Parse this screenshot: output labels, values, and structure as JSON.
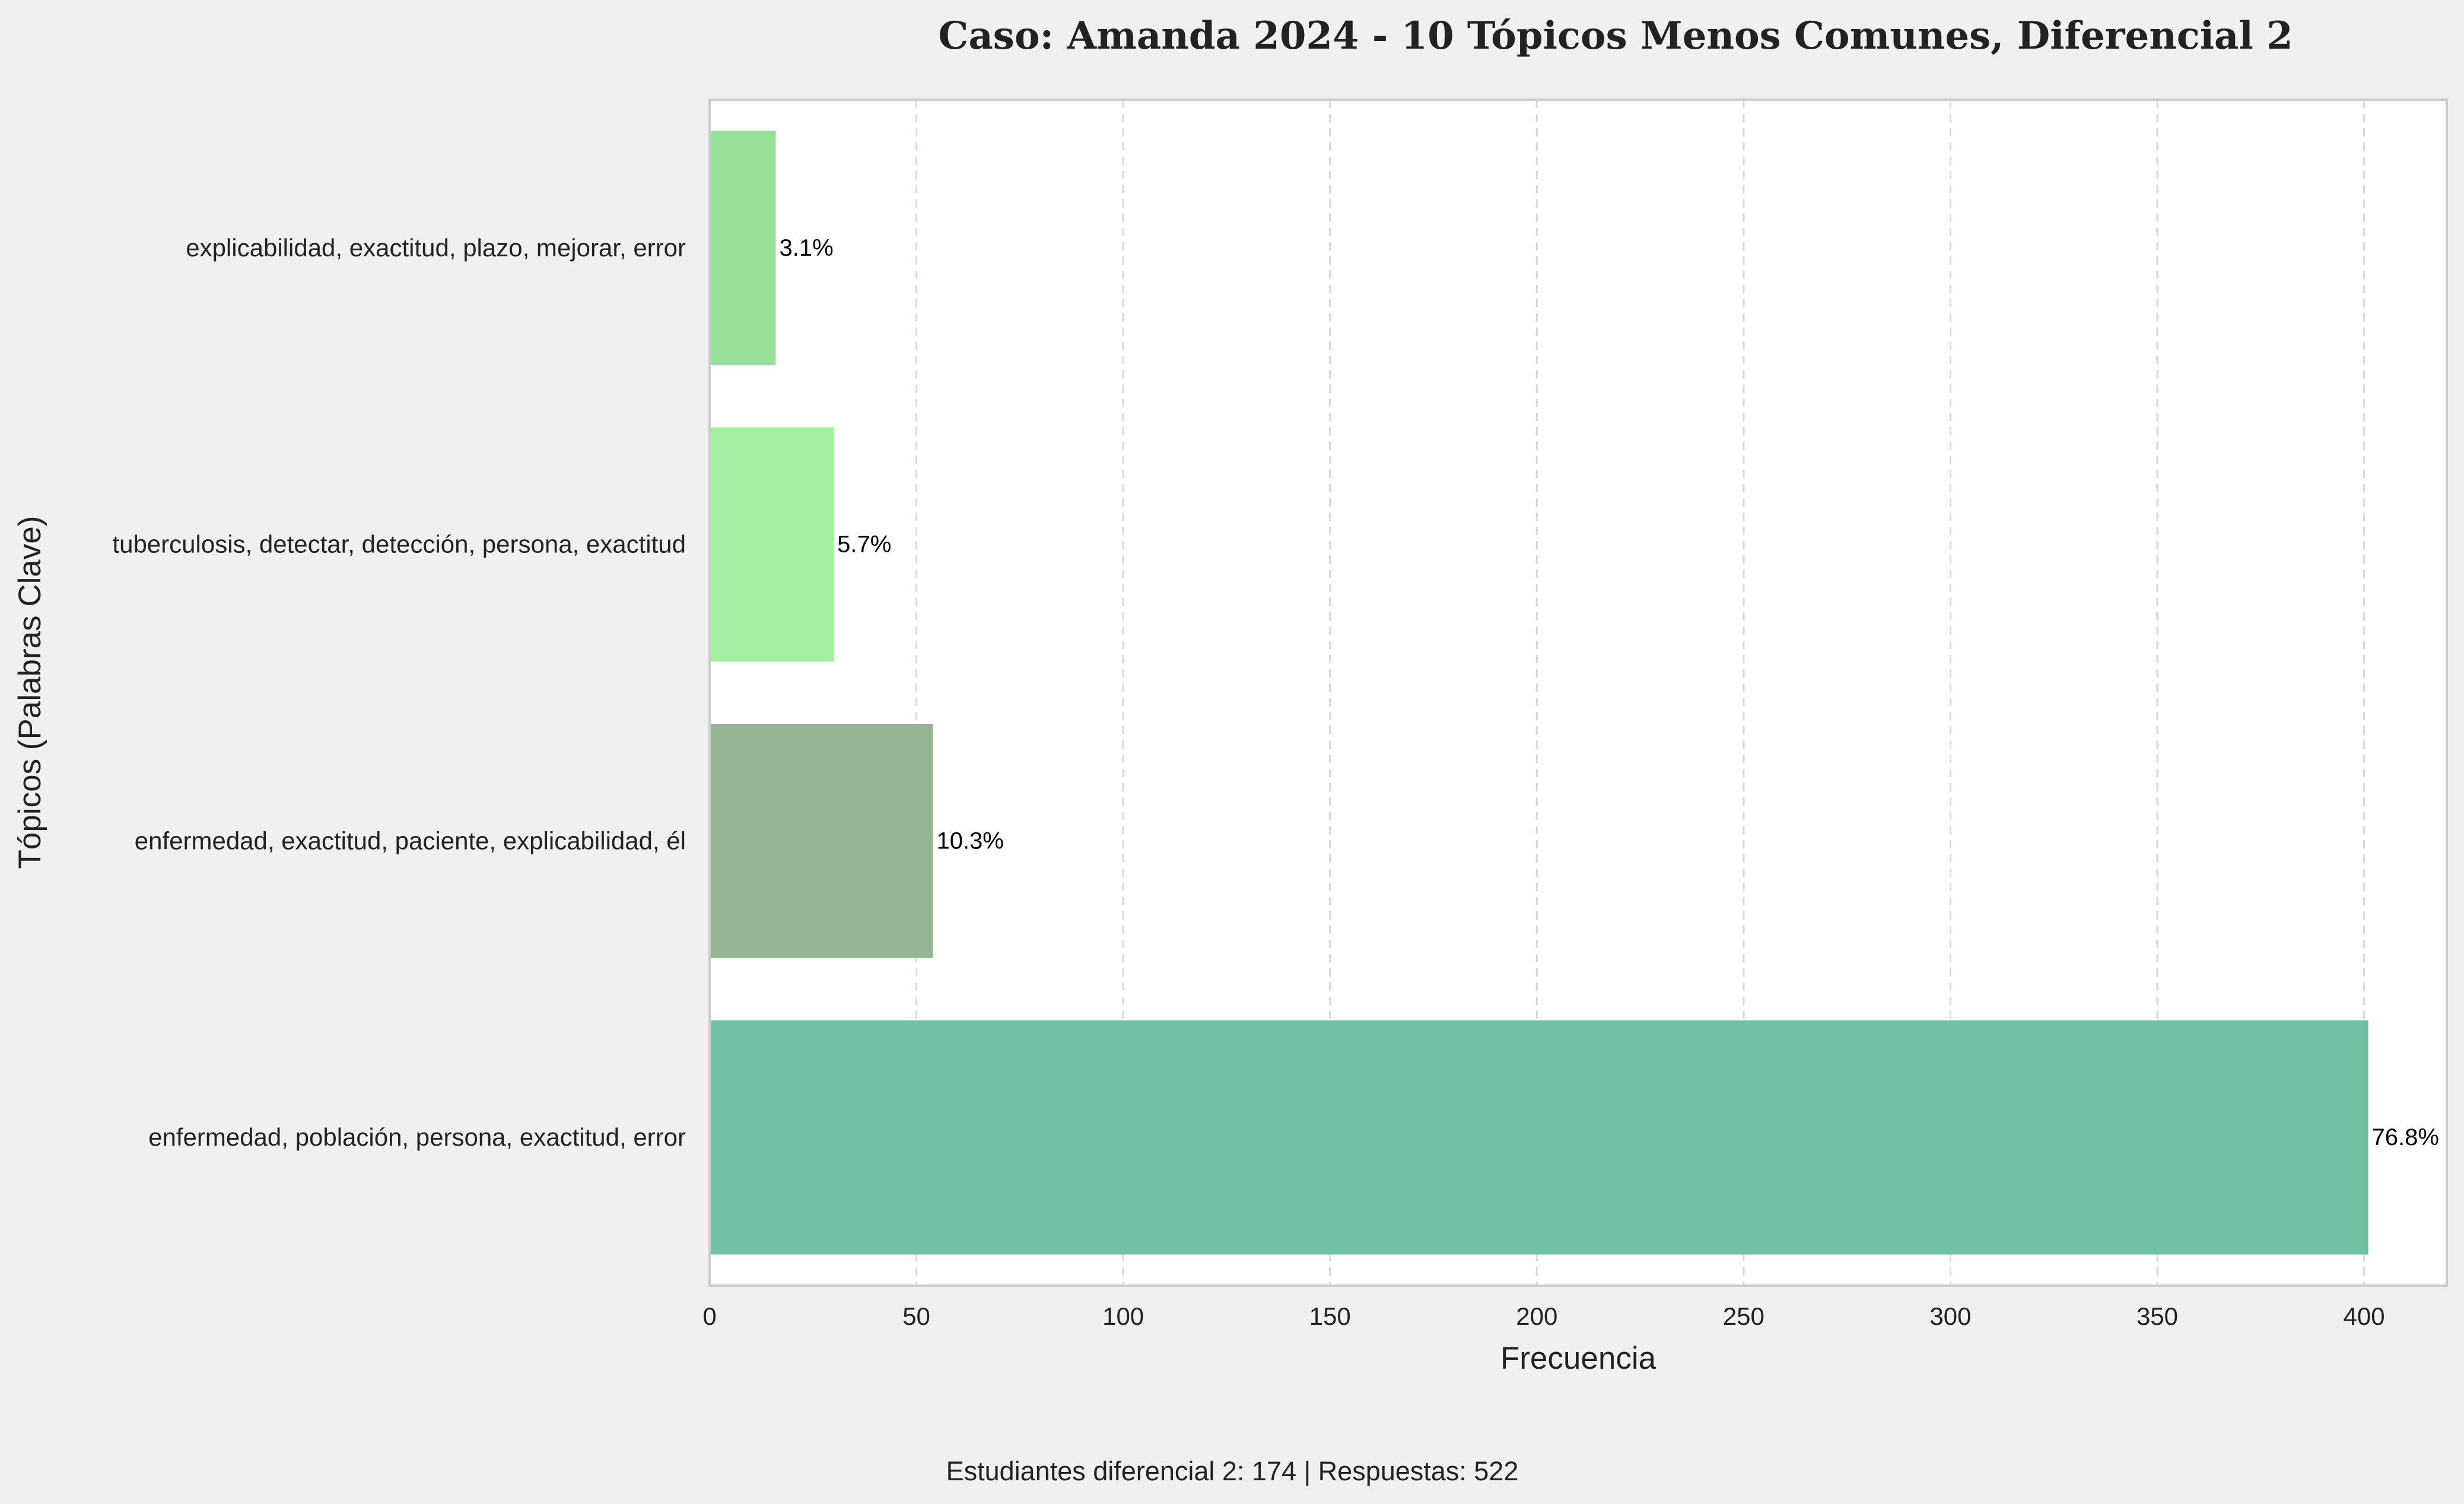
{
  "chart_data": {
    "type": "bar",
    "orientation": "horizontal",
    "title": "Caso: Amanda 2024 - 10 Tópicos Menos Comunes, Diferencial 2",
    "xlabel": "Frecuencia",
    "ylabel": "Tópicos (Palabras Clave)",
    "xlim": [
      0,
      420
    ],
    "x_ticks": [
      0,
      50,
      100,
      150,
      200,
      250,
      300,
      350,
      400
    ],
    "grid": "x-dashed",
    "categories": [
      "explicabilidad, exactitud, plazo, mejorar, error",
      "tuberculosis, detectar, detección, persona, exactitud",
      "enfermedad, exactitud, paciente, explicabilidad, él",
      "enfermedad, población, persona, exactitud, error"
    ],
    "values": [
      16,
      30,
      54,
      401
    ],
    "data_labels": [
      "3.1%",
      "5.7%",
      "10.3%",
      "76.8%"
    ],
    "colors": [
      "#98df99",
      "#a3eea0",
      "#96b594",
      "#73c0a5"
    ]
  },
  "footer": "Estudiantes diferencial 2: 174 | Respuestas: 522"
}
